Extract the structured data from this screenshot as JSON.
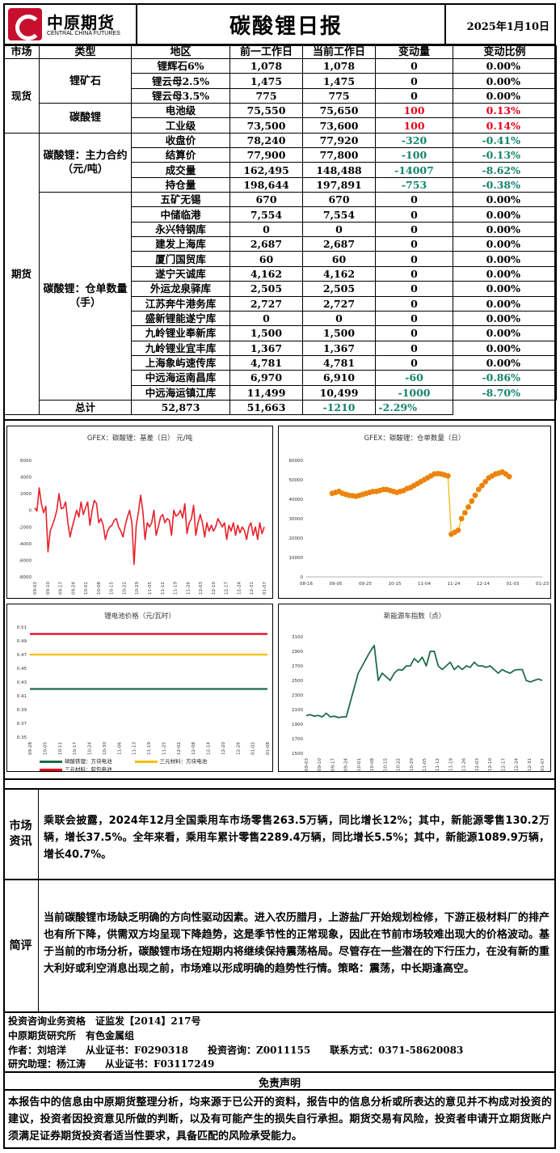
{
  "header": {
    "logo_cn": "中原期货",
    "logo_en": "CENTRAL CHINA FUTURES",
    "title": "碳酸锂日报",
    "date": "2025年1月10日"
  },
  "table": {
    "headers": [
      "市场",
      "类型",
      "地区",
      "前一工作日",
      "当前工作日",
      "变动量",
      "变动比例"
    ],
    "markets": {
      "spot": "现货",
      "futures": "期货"
    },
    "groups": {
      "ore": "锂矿石",
      "carbonate": "碳酸锂",
      "main_contract": "碳酸锂：主力合约（元/吨）",
      "warehouse": "碳酸锂：仓单数量（手）"
    },
    "rows": [
      {
        "name": "锂辉石6%",
        "prev": "1,078",
        "cur": "1,078",
        "chg": "0",
        "pct": "0.00%",
        "dir": ""
      },
      {
        "name": "锂云母2.5%",
        "prev": "1,475",
        "cur": "1,475",
        "chg": "0",
        "pct": "0.00%",
        "dir": ""
      },
      {
        "name": "锂云母3.5%",
        "prev": "775",
        "cur": "775",
        "chg": "0",
        "pct": "0.00%",
        "dir": ""
      },
      {
        "name": "电池级",
        "prev": "75,550",
        "cur": "75,650",
        "chg": "100",
        "pct": "0.13%",
        "dir": "up"
      },
      {
        "name": "工业级",
        "prev": "73,500",
        "cur": "73,600",
        "chg": "100",
        "pct": "0.14%",
        "dir": "up"
      },
      {
        "name": "收盘价",
        "prev": "78,240",
        "cur": "77,920",
        "chg": "-320",
        "pct": "-0.41%",
        "dir": "dn"
      },
      {
        "name": "结算价",
        "prev": "77,900",
        "cur": "77,800",
        "chg": "-100",
        "pct": "-0.13%",
        "dir": "dn"
      },
      {
        "name": "成交量",
        "prev": "162,495",
        "cur": "148,488",
        "chg": "-14007",
        "pct": "-8.62%",
        "dir": "dn"
      },
      {
        "name": "持仓量",
        "prev": "198,644",
        "cur": "197,891",
        "chg": "-753",
        "pct": "-0.38%",
        "dir": "dn"
      },
      {
        "name": "五矿无锡",
        "prev": "670",
        "cur": "670",
        "chg": "0",
        "pct": "0.00%",
        "dir": ""
      },
      {
        "name": "中储临港",
        "prev": "7,554",
        "cur": "7,554",
        "chg": "0",
        "pct": "0.00%",
        "dir": ""
      },
      {
        "name": "永兴特钢库",
        "prev": "0",
        "cur": "0",
        "chg": "0",
        "pct": "0.00%",
        "dir": ""
      },
      {
        "name": "建发上海库",
        "prev": "2,687",
        "cur": "2,687",
        "chg": "0",
        "pct": "0.00%",
        "dir": ""
      },
      {
        "name": "厦门国贸库",
        "prev": "60",
        "cur": "60",
        "chg": "0",
        "pct": "0.00%",
        "dir": ""
      },
      {
        "name": "遂宁天诚库",
        "prev": "4,162",
        "cur": "4,162",
        "chg": "0",
        "pct": "0.00%",
        "dir": ""
      },
      {
        "name": "外运龙泉驿库",
        "prev": "2,505",
        "cur": "2,505",
        "chg": "0",
        "pct": "0.00%",
        "dir": ""
      },
      {
        "name": "江苏奔牛港务库",
        "prev": "2,727",
        "cur": "2,727",
        "chg": "0",
        "pct": "0.00%",
        "dir": ""
      },
      {
        "name": "盛新锂能遂宁库",
        "prev": "0",
        "cur": "0",
        "chg": "0",
        "pct": "0.00%",
        "dir": ""
      },
      {
        "name": "九岭锂业奉新库",
        "prev": "1,500",
        "cur": "1,500",
        "chg": "0",
        "pct": "0.00%",
        "dir": ""
      },
      {
        "name": "九岭锂业宜丰库",
        "prev": "1,367",
        "cur": "1,367",
        "chg": "0",
        "pct": "0.00%",
        "dir": ""
      },
      {
        "name": "上海象屿速传库",
        "prev": "4,781",
        "cur": "4,781",
        "chg": "0",
        "pct": "0.00%",
        "dir": ""
      },
      {
        "name": "中远海运南昌库",
        "prev": "6,970",
        "cur": "6,910",
        "chg": "-60",
        "pct": "-0.86%",
        "dir": "dn"
      },
      {
        "name": "中远海运镇江库",
        "prev": "11,499",
        "cur": "10,499",
        "chg": "-1000",
        "pct": "-8.70%",
        "dir": "dn"
      },
      {
        "name": "总计",
        "prev": "52,873",
        "cur": "51,663",
        "chg": "-1210",
        "pct": "-2.29%",
        "dir": "dn"
      }
    ]
  },
  "colors": {
    "up": "#e8001a",
    "down": "#14846c",
    "basis": "#e8202a",
    "warrant_line": "#f5b400",
    "warrant_dot": "#f07d1a",
    "nev": "#1e6b4a",
    "lfp": "#1e6b4a",
    "ncm_mid": "#f5c000",
    "ncm_digital": "#e8001a"
  },
  "chart_data": [
    {
      "type": "line",
      "title": "GFEX：碳酸锂：基差（日） 元/吨",
      "ylim": [
        -8000,
        6000
      ],
      "yticks": [
        -8000,
        -6000,
        -4000,
        -2000,
        0,
        2000,
        4000,
        6000
      ],
      "xticks": [
        "09-03",
        "09-10",
        "09-17",
        "09-24",
        "10-01",
        "10-08",
        "10-15",
        "10-22",
        "10-29",
        "11-05",
        "11-12",
        "11-19",
        "11-26",
        "12-03",
        "12-10",
        "12-17",
        "12-24",
        "12-31",
        "01-07"
      ],
      "series": [
        {
          "name": "",
          "values": [
            300,
            -100,
            2700,
            800,
            -300,
            500,
            -5000,
            -2500,
            -1800,
            -1000,
            0,
            2000,
            200,
            300,
            1000,
            -1500,
            -3200,
            -2000,
            -1000,
            0,
            -800,
            1000,
            -500,
            300,
            1000,
            -1800,
            0,
            1200,
            800,
            -1500,
            -1000,
            -1800,
            -3500,
            -2500,
            -2000,
            -1800,
            -1200,
            -1000,
            -2000,
            -2500,
            -3200,
            -1800,
            -800,
            0,
            -1500,
            -6500,
            -1800,
            -200,
            1800,
            -100,
            -3500,
            -1500,
            -2000,
            -1500,
            0,
            -3000,
            -2000,
            -800,
            -500,
            -1500,
            -1000,
            -1200,
            -3000,
            0,
            -700,
            -500,
            0,
            -900,
            800,
            -2800,
            -1500,
            -1000,
            600,
            -3000,
            -1500,
            -500,
            -1500,
            -3200,
            -1500,
            -2500,
            -1800,
            -2500,
            -2000,
            -1000,
            -1500,
            -2000,
            -1500,
            -3500,
            -1800,
            -2500,
            -1500,
            -3000,
            -1800,
            -2700,
            -2000,
            -2400,
            -3500,
            -2000,
            -1500,
            -3000,
            -2000,
            -3500,
            -1500,
            -2800,
            -2000
          ]
        }
      ]
    },
    {
      "type": "line",
      "title": "GFEX：碳酸锂：仓单数量（日）",
      "ylim": [
        0,
        60000
      ],
      "yticks": [
        0,
        10000,
        20000,
        30000,
        40000,
        50000,
        60000
      ],
      "xticks": [
        "08-16",
        "09-05",
        "09-25",
        "10-15",
        "11-04",
        "11-24",
        "12-14",
        "01-03",
        "01-23"
      ],
      "series": [
        {
          "name": "",
          "values": [
            43000,
            43500,
            44000,
            43000,
            42500,
            42000,
            41800,
            41500,
            42000,
            42500,
            43000,
            43500,
            44000,
            44000,
            44500,
            45000,
            45000,
            44500,
            44000,
            43500,
            44000,
            44500,
            45500,
            46000,
            47000,
            48000,
            49000,
            50000,
            51000,
            52000,
            53000,
            53200,
            53000,
            52500,
            52000,
            22000,
            23000,
            24000,
            30000,
            33000,
            36000,
            39000,
            42000,
            45000,
            47000,
            49000,
            51000,
            52000,
            53000,
            53500,
            54000,
            53000,
            51663
          ]
        }
      ]
    },
    {
      "type": "line",
      "title": "锂电池价格（元/瓦时）",
      "ylim": [
        0.35,
        0.51
      ],
      "yticks": [
        0.35,
        0.37,
        0.39,
        0.41,
        0.43,
        0.45,
        0.47,
        0.49,
        0.51
      ],
      "xticks": [
        "09-28",
        "10-05",
        "10-11",
        "10-17",
        "10-24",
        "10-30",
        "11-06",
        "11-13",
        "11-19",
        "11-25",
        "12-02",
        "12-08",
        "12-14",
        "12-20",
        "12-26",
        "01-02",
        "01-08"
      ],
      "series": [
        {
          "name": "磷酸铁锂：方块电池",
          "values": [
            0.42,
            0.42
          ]
        },
        {
          "name": "三元材料：方块电池",
          "values": [
            0.47,
            0.47
          ]
        },
        {
          "name": "三元材料：软包电池",
          "values": [
            0.5,
            0.5
          ]
        }
      ]
    },
    {
      "type": "line",
      "title": "新能源车指数（点）",
      "ylim": [
        1500,
        3100
      ],
      "yticks": [
        1500,
        1700,
        1900,
        2100,
        2300,
        2500,
        2700,
        2900,
        3100
      ],
      "xticks": [
        "09-03",
        "09-10",
        "09-17",
        "09-24",
        "10-01",
        "10-08",
        "10-15",
        "10-22",
        "10-29",
        "11-05",
        "11-12",
        "11-19",
        "11-26",
        "12-03",
        "12-10",
        "12-17",
        "12-24",
        "12-31",
        "01-07"
      ],
      "series": [
        {
          "name": "",
          "values": [
            2020,
            2030,
            2010,
            2020,
            2000,
            2050,
            2000,
            2010,
            1990,
            2000,
            2000,
            2200,
            2400,
            2600,
            2700,
            2800,
            2900,
            2980,
            2500,
            2600,
            2550,
            2500,
            2600,
            2650,
            2640,
            2700,
            2700,
            2800,
            2750,
            2820,
            2700,
            2900,
            2900,
            2700,
            2650,
            2700,
            2750,
            2650,
            2700,
            2650,
            2700,
            2680,
            2750,
            2700,
            2700,
            2680,
            2700,
            2650,
            2600,
            2650,
            2620,
            2600,
            2640,
            2650,
            2650,
            2500,
            2480,
            2500,
            2520,
            2500
          ]
        }
      ]
    }
  ],
  "sections": {
    "news_label": "市场资讯",
    "news": "乘联会披露，2024年12月全国乘用车市场零售263.5万辆，同比增长12%；其中，新能源零售130.2万辆，增长37.5%。全年来看，乘用车累计零售2289.4万辆，同比增长5.5%；其中，新能源1089.9万辆，增长40.7%。",
    "review_label": "简评",
    "review": "当前碳酸锂市场缺乏明确的方向性驱动因素。进入农历腊月，上游盐厂开始规划检修，下游正极材料厂的排产也有所下降，供需双方均呈现下降趋势，这是季节性的正常现象，因此在节前市场较难出现大的价格波动。基于当前的市场分析，碳酸锂市场在短期内将继续保持震荡格局。尽管存在一些潜在的下行压力，在没有新的重大利好或利空消息出现之前，市场难以形成明确的趋势性行情。策略：震荡，中长期逢高空。"
  },
  "info": {
    "line1": "投资咨询业务资格　证监发【2014】217号",
    "line2": "中原期货研究所　有色金属组",
    "author": "作者：刘培洋　　从业证书：F0290318　　投资咨询：Z0011155　　联系方式：0371-58620083",
    "assistant": "研究助理：杨江涛　　从业证书：F03117249"
  },
  "disclaimer": {
    "title": "免责声明",
    "body": "本报告中的信息由中原期货整理分析，均来源于已公开的资料，报告中的信息分析或所表达的意见并不构成对投资的建议，投资者因投资意见所做的判断，以及有可能产生的损失自行承担。期货交易有风险，投资者申请开立期货账户须满足证券期货投资者适当性要求，具备匹配的风险承受能力。"
  }
}
